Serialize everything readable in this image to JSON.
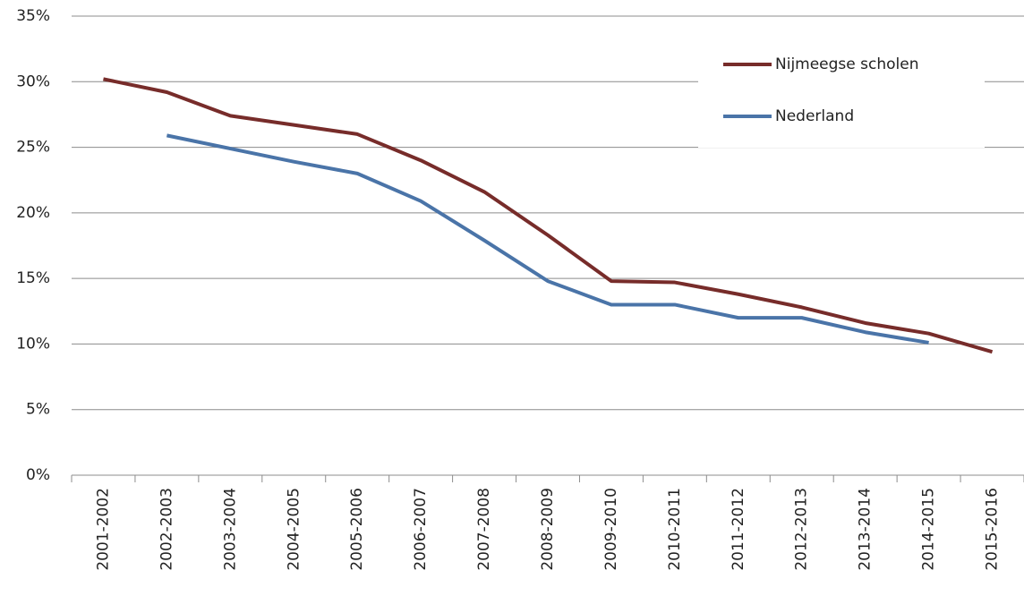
{
  "chart_data": {
    "type": "line",
    "categories": [
      "2001-2002",
      "2002-2003",
      "2003-2004",
      "2004-2005",
      "2005-2006",
      "2006-2007",
      "2007-2008",
      "2008-2009",
      "2009-2010",
      "2010-2011",
      "2011-2012",
      "2012-2013",
      "2013-2014",
      "2014-2015",
      "2015-2016"
    ],
    "series": [
      {
        "name": "Nijmeegse scholen",
        "color": "#772c2a",
        "values": [
          30.2,
          29.2,
          27.4,
          26.7,
          26.0,
          24.0,
          21.6,
          18.3,
          14.8,
          14.7,
          13.8,
          12.8,
          11.6,
          10.8,
          9.4
        ]
      },
      {
        "name": "Nederland",
        "color": "#4a74a8",
        "values": [
          null,
          25.9,
          24.9,
          23.9,
          23.0,
          20.9,
          17.9,
          14.8,
          13.0,
          13.0,
          12.0,
          12.0,
          10.9,
          10.1,
          null
        ]
      }
    ],
    "ylim": [
      0,
      35
    ],
    "yticks": [
      {
        "value": 0,
        "label": "0%"
      },
      {
        "value": 5,
        "label": "5%"
      },
      {
        "value": 10,
        "label": "10%"
      },
      {
        "value": 15,
        "label": "15%"
      },
      {
        "value": 20,
        "label": "20%"
      },
      {
        "value": 25,
        "label": "25%"
      },
      {
        "value": 30,
        "label": "30%"
      },
      {
        "value": 35,
        "label": "35%"
      }
    ],
    "grid": true,
    "legend": "upper right"
  }
}
